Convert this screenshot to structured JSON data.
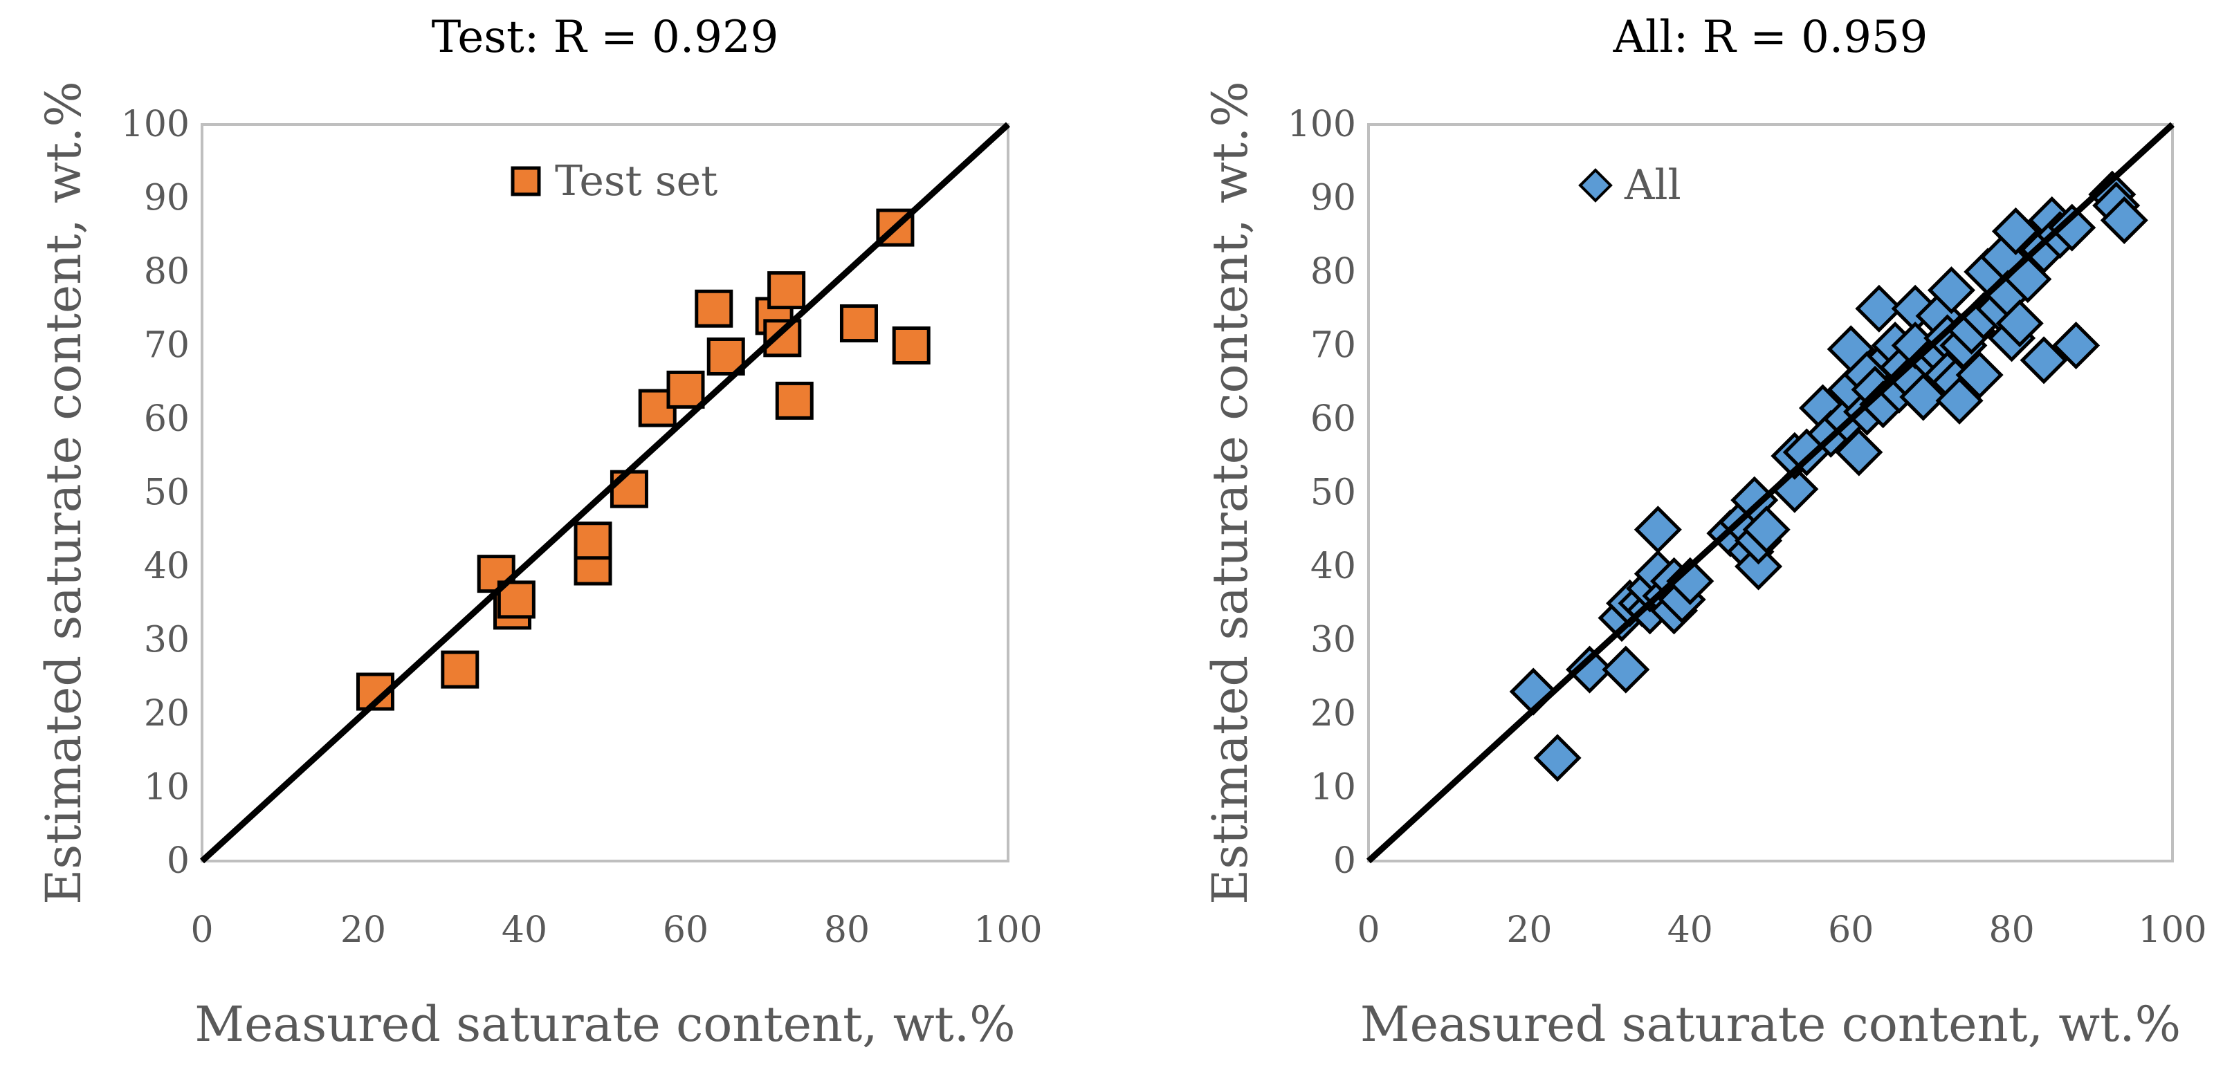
{
  "chart_data": [
    {
      "type": "scatter",
      "title": "Test: R = 0.929",
      "xlabel": "Measured saturate content, wt.%",
      "ylabel": "Estimated saturate content, wt.%",
      "xlim": [
        0,
        100
      ],
      "ylim": [
        0,
        100
      ],
      "x_ticks": [
        "0",
        "20",
        "40",
        "60",
        "80",
        "100"
      ],
      "y_ticks": [
        "0",
        "10",
        "20",
        "30",
        "40",
        "50",
        "60",
        "70",
        "80",
        "90",
        "100"
      ],
      "grid": false,
      "legend_position": "top-center",
      "marker": "square",
      "marker_color": "#ED7D31",
      "line_color": "#000000",
      "reference_line": {
        "x": [
          0,
          100
        ],
        "y": [
          0,
          100
        ]
      },
      "series": [
        {
          "name": "Test set",
          "points": [
            [
              21.5,
              23
            ],
            [
              32,
              26
            ],
            [
              36.5,
              39
            ],
            [
              38.5,
              34
            ],
            [
              39,
              35.5
            ],
            [
              48.5,
              40
            ],
            [
              48.5,
              43.5
            ],
            [
              53,
              50.5
            ],
            [
              56.5,
              61.5
            ],
            [
              60,
              64
            ],
            [
              63.5,
              75
            ],
            [
              65,
              68.5
            ],
            [
              71,
              74
            ],
            [
              72,
              71
            ],
            [
              72.5,
              77.5
            ],
            [
              73.5,
              62.5
            ],
            [
              81.5,
              73
            ],
            [
              86,
              86
            ],
            [
              88,
              70
            ]
          ]
        }
      ]
    },
    {
      "type": "scatter",
      "title": "All: R = 0.959",
      "xlabel": "Measured saturate content, wt.%",
      "ylabel": "Estimated saturate content, wt.%",
      "xlim": [
        0,
        100
      ],
      "ylim": [
        0,
        100
      ],
      "x_ticks": [
        "0",
        "20",
        "40",
        "60",
        "80",
        "100"
      ],
      "y_ticks": [
        "0",
        "10",
        "20",
        "30",
        "40",
        "50",
        "60",
        "70",
        "80",
        "90",
        "100"
      ],
      "grid": false,
      "legend_position": "top-left",
      "marker": "diamond",
      "marker_color": "#5B9BD5",
      "line_color": "#000000",
      "reference_line": {
        "x": [
          0,
          100
        ],
        "y": [
          0,
          100
        ]
      },
      "series": [
        {
          "name": "All",
          "points": [
            [
              20.5,
              23
            ],
            [
              23.5,
              14
            ],
            [
              27.5,
              26
            ],
            [
              32,
              26
            ],
            [
              31.5,
              33
            ],
            [
              32.5,
              35
            ],
            [
              34,
              35
            ],
            [
              35,
              34
            ],
            [
              35,
              37
            ],
            [
              36,
              39
            ],
            [
              36,
              45
            ],
            [
              37,
              36
            ],
            [
              38,
              34
            ],
            [
              38,
              38
            ],
            [
              39,
              35.5
            ],
            [
              40,
              38
            ],
            [
              45,
              44.5
            ],
            [
              46.5,
              46
            ],
            [
              47.5,
              42
            ],
            [
              48.5,
              40
            ],
            [
              48.5,
              43.5
            ],
            [
              48,
              49
            ],
            [
              49.5,
              45
            ],
            [
              53,
              50.5
            ],
            [
              53,
              55
            ],
            [
              54.5,
              55.5
            ],
            [
              56.5,
              61.5
            ],
            [
              57.5,
              58
            ],
            [
              59.5,
              60
            ],
            [
              60,
              64
            ],
            [
              60,
              69.5
            ],
            [
              61,
              55.5
            ],
            [
              62,
              61
            ],
            [
              62,
              66
            ],
            [
              63,
              64
            ],
            [
              63.5,
              75
            ],
            [
              64,
              62
            ],
            [
              65,
              68.5
            ],
            [
              65.5,
              70
            ],
            [
              66,
              64
            ],
            [
              66.5,
              67
            ],
            [
              67.5,
              65.5
            ],
            [
              68,
              75
            ],
            [
              68,
              70
            ],
            [
              69,
              63
            ],
            [
              70,
              68
            ],
            [
              71,
              74
            ],
            [
              71,
              69
            ],
            [
              72,
              71
            ],
            [
              72,
              66
            ],
            [
              72.5,
              77.5
            ],
            [
              73,
              65
            ],
            [
              73.5,
              62.5
            ],
            [
              74,
              70
            ],
            [
              75,
              72
            ],
            [
              76,
              66
            ],
            [
              76.5,
              74
            ],
            [
              77,
              80
            ],
            [
              78.5,
              75
            ],
            [
              79,
              82
            ],
            [
              79.5,
              77
            ],
            [
              80,
              71
            ],
            [
              80.5,
              85.5
            ],
            [
              81,
              73
            ],
            [
              82,
              79
            ],
            [
              84,
              68
            ],
            [
              84,
              83
            ],
            [
              85,
              87
            ],
            [
              86,
              85
            ],
            [
              87.5,
              86
            ],
            [
              88,
              70
            ],
            [
              92.5,
              90.5
            ],
            [
              93,
              89
            ],
            [
              94,
              87
            ]
          ]
        }
      ]
    }
  ]
}
